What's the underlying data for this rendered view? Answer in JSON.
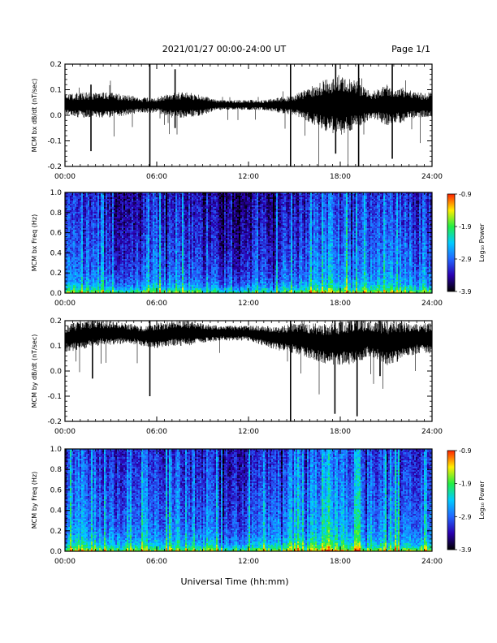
{
  "header": {
    "title": "2021/01/27  00:00-24:00 UT",
    "page": "Page 1/1"
  },
  "x_axis": {
    "label": "Universal Time (hh:mm)",
    "range": [
      0,
      24
    ],
    "ticks": [
      0,
      6,
      12,
      18,
      24
    ],
    "tick_labels": [
      "00:00",
      "06:00",
      "12:00",
      "18:00",
      "24:00"
    ]
  },
  "colorbar": {
    "label": "Log₁₀ Power",
    "range": [
      -3.9,
      -0.9
    ],
    "ticks": [
      -0.9,
      -1.9,
      -2.9,
      -3.9
    ],
    "tick_labels": [
      "-0.9",
      "-1.9",
      "-2.9",
      "-3.9"
    ],
    "colors": [
      "#000000",
      "#2a00b0",
      "#2266ff",
      "#00ccff",
      "#22ee44",
      "#ffee00",
      "#ff2200"
    ]
  },
  "chart_data": [
    {
      "type": "line",
      "id": "bx_waveform",
      "ylabel": "MCM bx dB/dt (nT/sec)",
      "xlim": [
        0,
        24
      ],
      "ylim": [
        -0.2,
        0.2
      ],
      "yticks": [
        -0.2,
        -0.1,
        0.0,
        0.1,
        0.2
      ],
      "ytick_labels": [
        "-0.2",
        "-0.1",
        "0.0",
        "0.1",
        "0.2"
      ],
      "series": [
        {
          "x": [
            0,
            1,
            2,
            3,
            4,
            5,
            6,
            7,
            8,
            9,
            10,
            11,
            12,
            13,
            14,
            15,
            16,
            17,
            18,
            19,
            20,
            21,
            22,
            23,
            24
          ],
          "baseline": [
            0.04,
            0.04,
            0.04,
            0.04,
            0.04,
            0.04,
            0.04,
            0.04,
            0.04,
            0.04,
            0.04,
            0.04,
            0.04,
            0.04,
            0.04,
            0.04,
            0.04,
            0.04,
            0.04,
            0.04,
            0.04,
            0.04,
            0.04,
            0.04,
            0.04
          ],
          "envelope": [
            0.04,
            0.05,
            0.05,
            0.05,
            0.04,
            0.03,
            0.03,
            0.05,
            0.05,
            0.04,
            0.02,
            0.02,
            0.02,
            0.02,
            0.03,
            0.04,
            0.07,
            0.1,
            0.12,
            0.1,
            0.05,
            0.08,
            0.07,
            0.05,
            0.05
          ]
        }
      ],
      "spikes": [
        {
          "x": 5.55,
          "min": -0.2,
          "max": 0.2
        },
        {
          "x": 14.75,
          "min": -0.2,
          "max": 0.2
        },
        {
          "x": 7.2,
          "min": -0.05,
          "max": 0.18
        },
        {
          "x": 1.7,
          "min": -0.14,
          "max": 0.12
        },
        {
          "x": 17.7,
          "min": -0.15,
          "max": 0.2
        },
        {
          "x": 19.2,
          "min": -0.2,
          "max": 0.2
        },
        {
          "x": 21.4,
          "min": -0.17,
          "max": 0.2
        }
      ]
    },
    {
      "type": "heatmap",
      "id": "bx_spectrogram",
      "ylabel": "MCM bx Freq (Hz)",
      "xlim": [
        0,
        24
      ],
      "ylim": [
        0,
        1.0
      ],
      "yticks": [
        0.0,
        0.2,
        0.4,
        0.6,
        0.8,
        1.0
      ],
      "ytick_labels": [
        "0.0",
        "0.2",
        "0.4",
        "0.6",
        "0.8",
        "1.0"
      ],
      "hour_power": [
        -2.9,
        -2.8,
        -2.9,
        -3.1,
        -3.3,
        -3.0,
        -3.1,
        -2.9,
        -3.0,
        -3.1,
        -3.2,
        -3.3,
        -3.3,
        -3.2,
        -3.1,
        -2.9,
        -2.8,
        -2.7,
        -2.7,
        -2.8,
        -2.9,
        -2.7,
        -2.8,
        -2.9,
        -2.9
      ],
      "bright_columns": [
        1.1,
        5.4,
        5.9,
        7.4,
        12.8,
        14.75,
        16.8,
        17.3,
        21.0,
        23.4
      ]
    },
    {
      "type": "line",
      "id": "by_waveform",
      "ylabel": "MCM by dB/dt (nT/sec)",
      "xlim": [
        0,
        24
      ],
      "ylim": [
        -0.2,
        0.2
      ],
      "yticks": [
        -0.2,
        -0.1,
        0.0,
        0.1,
        0.2
      ],
      "ytick_labels": [
        "-0.2",
        "-0.1",
        "0.0",
        "0.1",
        "0.2"
      ],
      "series": [
        {
          "x": [
            0,
            1,
            2,
            3,
            4,
            5,
            6,
            7,
            8,
            9,
            10,
            11,
            12,
            13,
            14,
            15,
            16,
            17,
            18,
            19,
            20,
            21,
            22,
            23,
            24
          ],
          "baseline": [
            0.13,
            0.14,
            0.15,
            0.15,
            0.15,
            0.14,
            0.14,
            0.15,
            0.15,
            0.15,
            0.15,
            0.15,
            0.15,
            0.14,
            0.13,
            0.13,
            0.12,
            0.11,
            0.11,
            0.12,
            0.13,
            0.11,
            0.12,
            0.13,
            0.13
          ],
          "envelope": [
            0.05,
            0.06,
            0.05,
            0.05,
            0.04,
            0.04,
            0.05,
            0.05,
            0.05,
            0.04,
            0.03,
            0.03,
            0.03,
            0.04,
            0.05,
            0.06,
            0.07,
            0.08,
            0.09,
            0.09,
            0.07,
            0.09,
            0.08,
            0.06,
            0.06
          ]
        }
      ],
      "spikes": [
        {
          "x": 5.55,
          "min": -0.1,
          "max": 0.2
        },
        {
          "x": 14.75,
          "min": -0.2,
          "max": 0.2
        },
        {
          "x": 17.65,
          "min": -0.17,
          "max": 0.2
        },
        {
          "x": 19.1,
          "min": -0.18,
          "max": 0.2
        },
        {
          "x": 1.8,
          "min": -0.03,
          "max": 0.2
        },
        {
          "x": 20.6,
          "min": -0.02,
          "max": 0.2
        }
      ]
    },
    {
      "type": "heatmap",
      "id": "by_spectrogram",
      "ylabel": "MCM by Freq (Hz)",
      "xlim": [
        0,
        24
      ],
      "ylim": [
        0,
        1.0
      ],
      "yticks": [
        0.0,
        0.2,
        0.4,
        0.6,
        0.8,
        1.0
      ],
      "ytick_labels": [
        "0.0",
        "0.2",
        "0.4",
        "0.6",
        "0.8",
        "1.0"
      ],
      "hour_power": [
        -2.8,
        -2.6,
        -2.8,
        -2.9,
        -3.0,
        -2.8,
        -2.9,
        -2.8,
        -2.9,
        -2.9,
        -3.0,
        -3.0,
        -3.0,
        -2.9,
        -2.8,
        -2.7,
        -2.6,
        -2.5,
        -2.6,
        -2.7,
        -2.8,
        -2.6,
        -2.7,
        -2.8,
        -2.8
      ],
      "bright_columns": [
        1.1,
        1.9,
        5.3,
        7.4,
        10.2,
        14.7,
        16.8,
        17.2,
        20.9,
        23.5
      ]
    }
  ]
}
